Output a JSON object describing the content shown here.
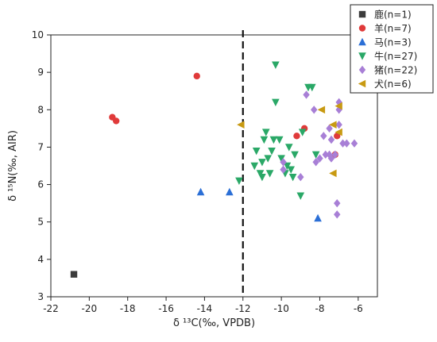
{
  "chart_data": {
    "type": "scatter",
    "title": "",
    "xlabel": "δ ¹³C(‰, VPDB)",
    "ylabel": "δ ¹⁵N(‰, AIR)",
    "xlim": [
      -22,
      -5
    ],
    "ylim": [
      3,
      10
    ],
    "xticks": [
      -22,
      -20,
      -18,
      -16,
      -14,
      -12,
      -10,
      -8,
      -6
    ],
    "yticks": [
      3,
      4,
      5,
      6,
      7,
      8,
      9,
      10
    ],
    "grid": false,
    "legend": {
      "placement": "top-right"
    },
    "reference_line": {
      "x": -12,
      "style": "dashed"
    },
    "series": [
      {
        "name": "鹿(n=1)",
        "marker": "square",
        "color": "#3c3c3c",
        "points": [
          [
            -20.8,
            3.6
          ]
        ]
      },
      {
        "name": "羊(n=7)",
        "marker": "circle",
        "color": "#e03a3a",
        "points": [
          [
            -18.8,
            7.8
          ],
          [
            -18.6,
            7.7
          ],
          [
            -14.4,
            8.9
          ],
          [
            -9.2,
            7.3
          ],
          [
            -8.8,
            7.5
          ],
          [
            -7.1,
            7.3
          ],
          [
            -7.2,
            6.8
          ]
        ]
      },
      {
        "name": "马(n=3)",
        "marker": "triangle-up",
        "color": "#2b6fd6",
        "points": [
          [
            -14.2,
            5.8
          ],
          [
            -12.7,
            5.8
          ],
          [
            -8.1,
            5.1
          ]
        ]
      },
      {
        "name": "牛(n=27)",
        "marker": "triangle-down",
        "color": "#2aa867",
        "points": [
          [
            -12.2,
            6.1
          ],
          [
            -11.3,
            6.9
          ],
          [
            -11.0,
            6.6
          ],
          [
            -11.1,
            6.3
          ],
          [
            -11.0,
            6.2
          ],
          [
            -10.9,
            7.2
          ],
          [
            -10.8,
            7.4
          ],
          [
            -10.7,
            6.7
          ],
          [
            -10.5,
            6.9
          ],
          [
            -10.4,
            7.2
          ],
          [
            -10.3,
            9.2
          ],
          [
            -10.3,
            8.2
          ],
          [
            -10.1,
            7.2
          ],
          [
            -10.0,
            6.7
          ],
          [
            -9.8,
            6.3
          ],
          [
            -9.7,
            6.5
          ],
          [
            -9.5,
            6.4
          ],
          [
            -9.4,
            6.2
          ],
          [
            -9.6,
            7.0
          ],
          [
            -9.3,
            6.8
          ],
          [
            -9.0,
            5.7
          ],
          [
            -8.9,
            7.4
          ],
          [
            -8.6,
            8.6
          ],
          [
            -8.4,
            8.6
          ],
          [
            -8.2,
            6.8
          ],
          [
            -10.6,
            6.3
          ],
          [
            -11.4,
            6.5
          ]
        ]
      },
      {
        "name": "猪(n=22)",
        "marker": "diamond",
        "color": "#a87fd6",
        "points": [
          [
            -8.7,
            8.4
          ],
          [
            -8.3,
            8.0
          ],
          [
            -7.0,
            8.2
          ],
          [
            -7.0,
            8.0
          ],
          [
            -9.9,
            6.6
          ],
          [
            -9.9,
            6.4
          ],
          [
            -9.0,
            6.2
          ],
          [
            -8.2,
            6.6
          ],
          [
            -8.0,
            6.7
          ],
          [
            -7.7,
            6.8
          ],
          [
            -7.5,
            6.8
          ],
          [
            -7.4,
            6.7
          ],
          [
            -7.2,
            6.8
          ],
          [
            -7.8,
            7.3
          ],
          [
            -7.5,
            7.5
          ],
          [
            -7.0,
            7.6
          ],
          [
            -6.8,
            7.1
          ],
          [
            -6.6,
            7.1
          ],
          [
            -6.2,
            7.1
          ],
          [
            -7.1,
            5.5
          ],
          [
            -7.1,
            5.2
          ],
          [
            -7.4,
            7.2
          ]
        ]
      },
      {
        "name": "犬(n=6)",
        "marker": "triangle-left",
        "color": "#c89a12",
        "points": [
          [
            -12.1,
            7.6
          ],
          [
            -7.9,
            8.0
          ],
          [
            -7.3,
            7.6
          ],
          [
            -7.0,
            7.4
          ],
          [
            -7.3,
            6.3
          ],
          [
            -7.0,
            8.1
          ]
        ]
      }
    ]
  }
}
